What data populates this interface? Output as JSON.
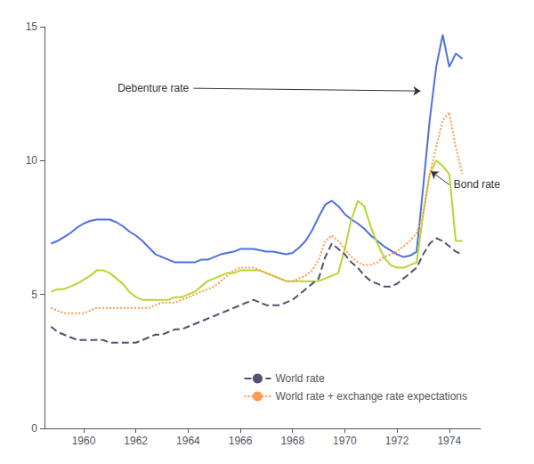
{
  "chart_data": {
    "type": "line",
    "xlim": [
      1958.5,
      1975.2
    ],
    "ylim": [
      0,
      15
    ],
    "xticks": [
      1960,
      1962,
      1964,
      1966,
      1968,
      1970,
      1972,
      1974
    ],
    "yticks": [
      0,
      5,
      10,
      15
    ],
    "grid": false,
    "legend": "lower right",
    "x": [
      1958.75,
      1959.0,
      1959.25,
      1959.5,
      1959.75,
      1960.0,
      1960.25,
      1960.5,
      1960.75,
      1961.0,
      1961.25,
      1961.5,
      1961.75,
      1962.0,
      1962.25,
      1962.5,
      1962.75,
      1963.0,
      1963.25,
      1963.5,
      1963.75,
      1964.0,
      1964.25,
      1964.5,
      1964.75,
      1965.0,
      1965.25,
      1965.5,
      1965.75,
      1966.0,
      1966.25,
      1966.5,
      1966.75,
      1967.0,
      1967.25,
      1967.5,
      1967.75,
      1968.0,
      1968.25,
      1968.5,
      1968.75,
      1969.0,
      1969.25,
      1969.5,
      1969.75,
      1970.0,
      1970.25,
      1970.5,
      1970.75,
      1971.0,
      1971.25,
      1971.5,
      1971.75,
      1972.0,
      1972.25,
      1972.5,
      1972.75,
      1973.0,
      1973.25,
      1973.5,
      1973.75,
      1974.0,
      1974.25,
      1974.5
    ],
    "series": [
      {
        "line_style": "solid",
        "values": [
          6.9,
          7.0,
          7.15,
          7.3,
          7.5,
          7.65,
          7.75,
          7.8,
          7.8,
          7.8,
          7.7,
          7.55,
          7.35,
          7.2,
          7.0,
          6.75,
          6.5,
          6.4,
          6.3,
          6.2,
          6.2,
          6.2,
          6.2,
          6.3,
          6.3,
          6.4,
          6.5,
          6.55,
          6.6,
          6.7,
          6.7,
          6.7,
          6.65,
          6.6,
          6.6,
          6.55,
          6.5,
          6.55,
          6.75,
          7.0,
          7.4,
          7.9,
          8.35,
          8.5,
          8.3,
          8.0,
          7.8,
          7.65,
          7.45,
          7.2,
          7.0,
          6.8,
          6.65,
          6.5,
          6.4,
          6.45,
          6.6,
          9.0,
          11.5,
          13.5,
          14.7,
          13.5,
          14.0,
          13.8
        ]
      },
      {
        "line_style": "solid",
        "values": [
          5.1,
          5.2,
          5.2,
          5.3,
          5.4,
          5.55,
          5.7,
          5.9,
          5.9,
          5.8,
          5.6,
          5.4,
          5.1,
          4.9,
          4.8,
          4.8,
          4.8,
          4.8,
          4.8,
          4.9,
          4.9,
          5.0,
          5.1,
          5.3,
          5.5,
          5.6,
          5.7,
          5.8,
          5.8,
          5.9,
          5.9,
          5.9,
          5.9,
          5.8,
          5.7,
          5.6,
          5.5,
          5.5,
          5.5,
          5.5,
          5.5,
          5.5,
          5.6,
          5.7,
          5.8,
          6.7,
          7.8,
          8.5,
          8.3,
          7.5,
          6.9,
          6.4,
          6.1,
          6.0,
          6.0,
          6.1,
          6.2,
          8.0,
          9.5,
          10.0,
          9.8,
          9.5,
          7.0,
          7.0
        ]
      },
      {
        "name": "World rate",
        "line_style": "dashed",
        "values": [
          3.8,
          3.6,
          3.5,
          3.4,
          3.3,
          3.3,
          3.3,
          3.3,
          3.3,
          3.2,
          3.2,
          3.2,
          3.2,
          3.2,
          3.3,
          3.4,
          3.5,
          3.5,
          3.6,
          3.7,
          3.7,
          3.8,
          3.9,
          4.0,
          4.1,
          4.2,
          4.3,
          4.4,
          4.5,
          4.6,
          4.7,
          4.8,
          4.7,
          4.6,
          4.6,
          4.6,
          4.7,
          4.8,
          5.0,
          5.2,
          5.4,
          5.6,
          6.4,
          6.9,
          6.7,
          6.5,
          6.2,
          6.0,
          5.7,
          5.5,
          5.4,
          5.3,
          5.3,
          5.4,
          5.6,
          5.8,
          6.0,
          6.5,
          6.9,
          7.1,
          7.0,
          6.8,
          6.6,
          6.5
        ]
      },
      {
        "name": "World rate + exchange rate expectations",
        "line_style": "dotted",
        "values": [
          4.5,
          4.4,
          4.3,
          4.3,
          4.3,
          4.3,
          4.4,
          4.5,
          4.5,
          4.5,
          4.5,
          4.5,
          4.5,
          4.5,
          4.5,
          4.5,
          4.6,
          4.7,
          4.7,
          4.7,
          4.8,
          4.9,
          5.0,
          5.1,
          5.2,
          5.3,
          5.5,
          5.7,
          5.9,
          6.0,
          6.0,
          6.0,
          5.9,
          5.8,
          5.7,
          5.6,
          5.5,
          5.5,
          5.6,
          5.7,
          5.9,
          6.3,
          7.0,
          7.2,
          7.0,
          6.7,
          6.4,
          6.2,
          6.1,
          6.1,
          6.2,
          6.4,
          6.5,
          6.6,
          6.8,
          7.0,
          7.3,
          8.0,
          9.5,
          10.5,
          11.5,
          11.8,
          10.5,
          9.5
        ]
      }
    ],
    "annotations": [
      {
        "text": "Debenture rate",
        "xy": [
          1972.9,
          12.6
        ],
        "xytext": [
          1964.2,
          12.7
        ]
      },
      {
        "text": "Bond rate",
        "xy": [
          1973.3,
          9.6
        ],
        "xytext": [
          1974.0,
          9.1
        ]
      }
    ]
  }
}
